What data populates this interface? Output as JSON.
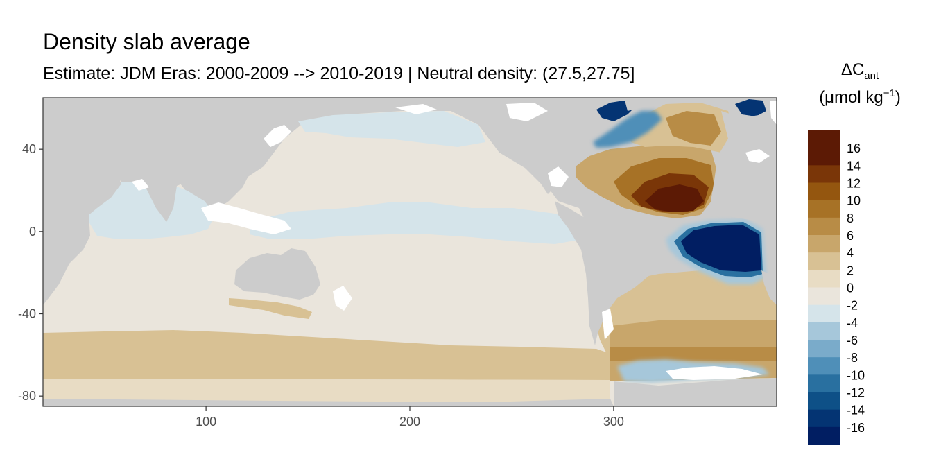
{
  "chart_data": {
    "type": "heatmap",
    "title": "Density slab average",
    "subtitle": "Estimate: JDM Eras: 2000-2009 --> 2010-2019 | Neutral density: (27.5,27.75]",
    "legend": {
      "title_main": "ΔC",
      "title_sub": "ant",
      "unit_open": "(μmol kg",
      "unit_sup": "−1",
      "unit_close": ")",
      "placement": "right",
      "bins": [
        {
          "label": "16",
          "color": "#5c1a05"
        },
        {
          "label": "14",
          "color": "#7a3608"
        },
        {
          "label": "12",
          "color": "#94560f"
        },
        {
          "label": "10",
          "color": "#a77226"
        },
        {
          "label": "8",
          "color": "#b88c46"
        },
        {
          "label": "6",
          "color": "#c8a66b"
        },
        {
          "label": "4",
          "color": "#d8c194"
        },
        {
          "label": "2",
          "color": "#e8dcc4"
        },
        {
          "label": "0",
          "color": "#eae5dc"
        },
        {
          "label": "-2",
          "color": "#d5e4ea"
        },
        {
          "label": "-4",
          "color": "#a6c7da"
        },
        {
          "label": "-6",
          "color": "#7aabca"
        },
        {
          "label": "-8",
          "color": "#4f8fb8"
        },
        {
          "label": "-10",
          "color": "#2970a0"
        },
        {
          "label": "-12",
          "color": "#0e5087"
        },
        {
          "label": "-14",
          "color": "#043473"
        },
        {
          "label": "-16",
          "color": "#011e62"
        }
      ]
    },
    "x_axis": {
      "range": [
        20,
        380
      ],
      "ticks": [
        100,
        200,
        300
      ],
      "tick_labels": [
        "100",
        "200",
        "300"
      ]
    },
    "y_axis": {
      "range": [
        -85,
        65
      ],
      "ticks": [
        40,
        0,
        -40,
        -80
      ],
      "tick_labels": [
        "40",
        "0",
        "-40",
        "-80"
      ]
    },
    "land_color": "#cccccc",
    "grid": false
  }
}
